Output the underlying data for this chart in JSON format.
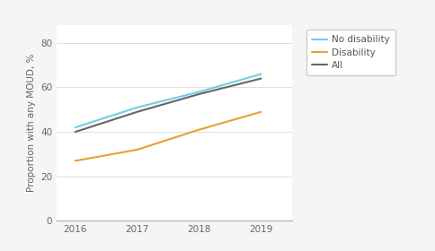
{
  "years": [
    2016,
    2017,
    2018,
    2019
  ],
  "series": [
    {
      "label": "No disability",
      "values": [
        42,
        51,
        58,
        66
      ],
      "color": "#6dcfe8",
      "linewidth": 1.5,
      "zorder": 3
    },
    {
      "label": "Disability",
      "values": [
        27,
        32,
        41,
        49
      ],
      "color": "#e8a030",
      "linewidth": 1.5,
      "zorder": 2
    },
    {
      "label": "All",
      "values": [
        40,
        49,
        57,
        64
      ],
      "color": "#666666",
      "linewidth": 1.5,
      "zorder": 2
    }
  ],
  "ylabel": "Proportion with any MOUD, %",
  "ylim": [
    0,
    88
  ],
  "yticks": [
    0,
    20,
    40,
    60,
    80
  ],
  "xlim": [
    2015.7,
    2019.5
  ],
  "xticks": [
    2016,
    2017,
    2018,
    2019
  ],
  "background_color": "#f5f5f5",
  "axes_background": "#ffffff",
  "grid_color": "#d8d8d8",
  "tick_label_fontsize": 7.5,
  "ylabel_fontsize": 7.5,
  "legend_fontsize": 7.5
}
